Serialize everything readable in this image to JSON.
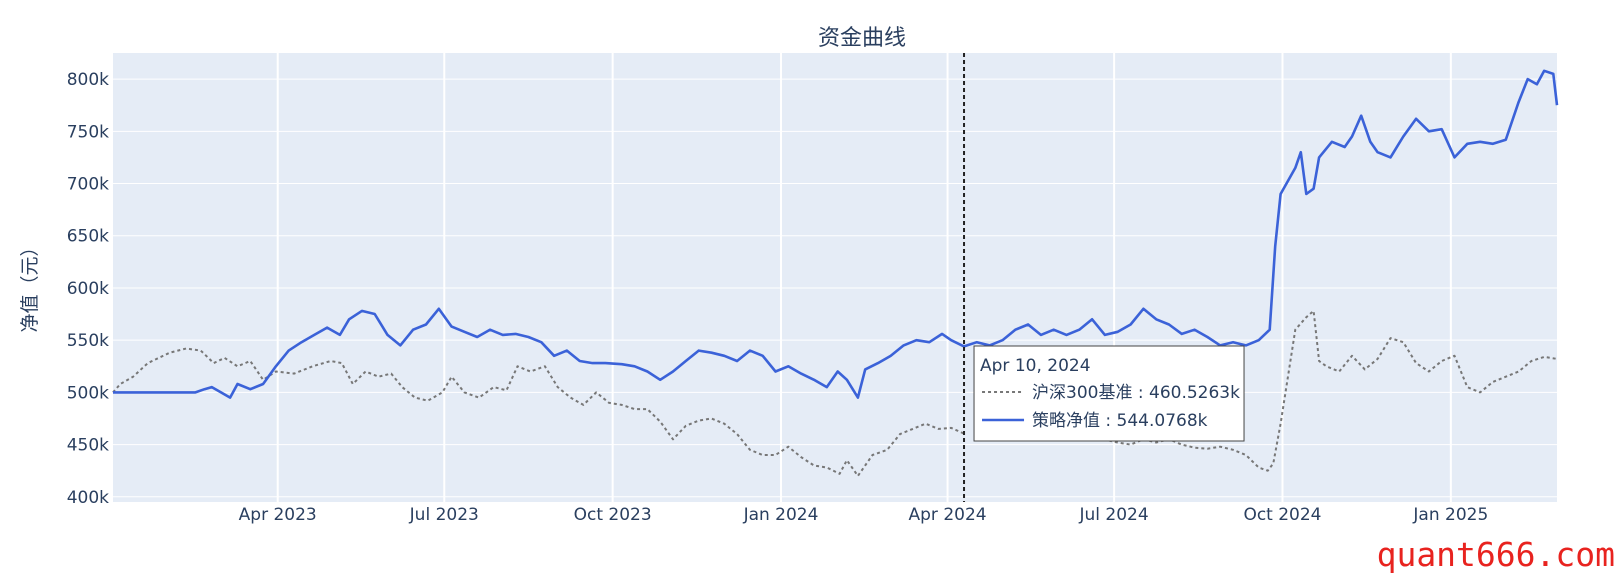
{
  "colors": {
    "plot_bg": "#e5ecf6",
    "grid": "#ffffff",
    "strategy": "#3b62d8",
    "benchmark": "#777777",
    "text": "#2a3f5f",
    "watermark": "#e8231f"
  },
  "watermark": "quant666.com",
  "chart_data": {
    "type": "line",
    "title": "资金曲线",
    "ylabel": "净值（元）",
    "xlabel": "",
    "x_range": [
      "2023-01-01",
      "2025-02-28"
    ],
    "ylim": [
      395000,
      825000
    ],
    "y_ticks": [
      400000,
      450000,
      500000,
      550000,
      600000,
      650000,
      700000,
      750000,
      800000
    ],
    "y_tick_labels": [
      "400k",
      "450k",
      "500k",
      "550k",
      "600k",
      "650k",
      "700k",
      "750k",
      "800k"
    ],
    "x_ticks": [
      "2023-04-01",
      "2023-07-01",
      "2023-10-01",
      "2024-01-01",
      "2024-04-01",
      "2024-07-01",
      "2024-10-01",
      "2025-01-01"
    ],
    "x_tick_labels": [
      "Apr 2023",
      "Jul 2023",
      "Oct 2023",
      "Jan 2024",
      "Apr 2024",
      "Jul 2024",
      "Oct 2024",
      "Jan 2025"
    ],
    "grid": true,
    "hover": {
      "x": "2024-04-10",
      "date_label": "Apr 10, 2024",
      "entries": [
        {
          "series": "沪深300基准",
          "label": "沪深300基准 : 460.5263k"
        },
        {
          "series": "策略净值",
          "label": "策略净值 : 544.0768k"
        }
      ]
    },
    "series": [
      {
        "name": "沪深300基准",
        "style": "dotted",
        "points": [
          [
            "2023-01-01",
            500000
          ],
          [
            "2023-01-05",
            508000
          ],
          [
            "2023-01-12",
            515000
          ],
          [
            "2023-01-20",
            528000
          ],
          [
            "2023-02-01",
            538000
          ],
          [
            "2023-02-10",
            542000
          ],
          [
            "2023-02-18",
            540000
          ],
          [
            "2023-02-25",
            528000
          ],
          [
            "2023-03-03",
            533000
          ],
          [
            "2023-03-10",
            525000
          ],
          [
            "2023-03-17",
            530000
          ],
          [
            "2023-03-24",
            512000
          ],
          [
            "2023-03-31",
            520000
          ],
          [
            "2023-04-10",
            518000
          ],
          [
            "2023-04-20",
            525000
          ],
          [
            "2023-04-30",
            530000
          ],
          [
            "2023-05-06",
            528000
          ],
          [
            "2023-05-12",
            508000
          ],
          [
            "2023-05-19",
            520000
          ],
          [
            "2023-05-26",
            515000
          ],
          [
            "2023-06-02",
            518000
          ],
          [
            "2023-06-08",
            505000
          ],
          [
            "2023-06-15",
            495000
          ],
          [
            "2023-06-22",
            492000
          ],
          [
            "2023-06-30",
            500000
          ],
          [
            "2023-07-05",
            515000
          ],
          [
            "2023-07-12",
            500000
          ],
          [
            "2023-07-20",
            495000
          ],
          [
            "2023-07-28",
            505000
          ],
          [
            "2023-08-04",
            502000
          ],
          [
            "2023-08-10",
            525000
          ],
          [
            "2023-08-17",
            520000
          ],
          [
            "2023-08-25",
            525000
          ],
          [
            "2023-09-01",
            505000
          ],
          [
            "2023-09-08",
            495000
          ],
          [
            "2023-09-15",
            488000
          ],
          [
            "2023-09-22",
            500000
          ],
          [
            "2023-09-29",
            490000
          ],
          [
            "2023-10-06",
            488000
          ],
          [
            "2023-10-13",
            484000
          ],
          [
            "2023-10-20",
            484000
          ],
          [
            "2023-10-27",
            472000
          ],
          [
            "2023-11-03",
            455000
          ],
          [
            "2023-11-10",
            468000
          ],
          [
            "2023-11-17",
            473000
          ],
          [
            "2023-11-24",
            475000
          ],
          [
            "2023-12-01",
            470000
          ],
          [
            "2023-12-08",
            460000
          ],
          [
            "2023-12-15",
            445000
          ],
          [
            "2023-12-22",
            440000
          ],
          [
            "2023-12-29",
            440000
          ],
          [
            "2024-01-05",
            448000
          ],
          [
            "2024-01-12",
            438000
          ],
          [
            "2024-01-19",
            430000
          ],
          [
            "2024-01-26",
            428000
          ],
          [
            "2024-02-02",
            422000
          ],
          [
            "2024-02-06",
            435000
          ],
          [
            "2024-02-12",
            420000
          ],
          [
            "2024-02-20",
            440000
          ],
          [
            "2024-02-28",
            445000
          ],
          [
            "2024-03-06",
            460000
          ],
          [
            "2024-03-13",
            465000
          ],
          [
            "2024-03-20",
            470000
          ],
          [
            "2024-03-27",
            465000
          ],
          [
            "2024-04-03",
            466000
          ],
          [
            "2024-04-10",
            460500
          ]
        ]
      },
      {
        "name": "沪深300基准",
        "style": "dotted",
        "points": [
          [
            "2024-06-25",
            455000
          ],
          [
            "2024-07-03",
            452000
          ],
          [
            "2024-07-10",
            450000
          ],
          [
            "2024-07-17",
            455000
          ],
          [
            "2024-07-24",
            452000
          ],
          [
            "2024-07-31",
            455000
          ],
          [
            "2024-08-07",
            450000
          ],
          [
            "2024-08-14",
            447000
          ],
          [
            "2024-08-21",
            446000
          ],
          [
            "2024-08-28",
            448000
          ],
          [
            "2024-09-04",
            445000
          ],
          [
            "2024-09-11",
            440000
          ],
          [
            "2024-09-18",
            428000
          ],
          [
            "2024-09-23",
            425000
          ],
          [
            "2024-09-26",
            432000
          ],
          [
            "2024-09-30",
            470000
          ],
          [
            "2024-10-08",
            560000
          ],
          [
            "2024-10-14",
            572000
          ],
          [
            "2024-10-18",
            578000
          ],
          [
            "2024-10-21",
            530000
          ],
          [
            "2024-10-25",
            525000
          ],
          [
            "2024-11-01",
            520000
          ],
          [
            "2024-11-08",
            535000
          ],
          [
            "2024-11-15",
            522000
          ],
          [
            "2024-11-22",
            532000
          ],
          [
            "2024-11-29",
            552000
          ],
          [
            "2024-12-06",
            548000
          ],
          [
            "2024-12-13",
            528000
          ],
          [
            "2024-12-20",
            520000
          ],
          [
            "2024-12-27",
            530000
          ],
          [
            "2025-01-03",
            535000
          ],
          [
            "2025-01-10",
            505000
          ],
          [
            "2025-01-17",
            500000
          ],
          [
            "2025-01-24",
            510000
          ],
          [
            "2025-01-31",
            515000
          ],
          [
            "2025-02-07",
            520000
          ],
          [
            "2025-02-14",
            530000
          ],
          [
            "2025-02-21",
            534000
          ],
          [
            "2025-02-28",
            532000
          ]
        ]
      },
      {
        "name": "策略净值",
        "style": "solid",
        "points": [
          [
            "2023-01-01",
            500000
          ],
          [
            "2023-02-15",
            500000
          ],
          [
            "2023-02-20",
            503000
          ],
          [
            "2023-02-24",
            505000
          ],
          [
            "2023-03-01",
            500000
          ],
          [
            "2023-03-06",
            495000
          ],
          [
            "2023-03-10",
            508000
          ],
          [
            "2023-03-17",
            503000
          ],
          [
            "2023-03-24",
            508000
          ],
          [
            "2023-03-31",
            525000
          ],
          [
            "2023-04-07",
            540000
          ],
          [
            "2023-04-14",
            548000
          ],
          [
            "2023-04-21",
            555000
          ],
          [
            "2023-04-28",
            562000
          ],
          [
            "2023-05-05",
            555000
          ],
          [
            "2023-05-10",
            570000
          ],
          [
            "2023-05-17",
            578000
          ],
          [
            "2023-05-24",
            575000
          ],
          [
            "2023-05-31",
            555000
          ],
          [
            "2023-06-07",
            545000
          ],
          [
            "2023-06-14",
            560000
          ],
          [
            "2023-06-21",
            565000
          ],
          [
            "2023-06-28",
            580000
          ],
          [
            "2023-07-05",
            563000
          ],
          [
            "2023-07-12",
            558000
          ],
          [
            "2023-07-19",
            553000
          ],
          [
            "2023-07-26",
            560000
          ],
          [
            "2023-08-02",
            555000
          ],
          [
            "2023-08-09",
            556000
          ],
          [
            "2023-08-16",
            553000
          ],
          [
            "2023-08-23",
            548000
          ],
          [
            "2023-08-30",
            535000
          ],
          [
            "2023-09-06",
            540000
          ],
          [
            "2023-09-13",
            530000
          ],
          [
            "2023-09-20",
            528000
          ],
          [
            "2023-09-27",
            528000
          ],
          [
            "2023-10-06",
            527000
          ],
          [
            "2023-10-13",
            525000
          ],
          [
            "2023-10-20",
            520000
          ],
          [
            "2023-10-27",
            512000
          ],
          [
            "2023-11-03",
            520000
          ],
          [
            "2023-11-10",
            530000
          ],
          [
            "2023-11-17",
            540000
          ],
          [
            "2023-11-24",
            538000
          ],
          [
            "2023-12-01",
            535000
          ],
          [
            "2023-12-08",
            530000
          ],
          [
            "2023-12-15",
            540000
          ],
          [
            "2023-12-22",
            535000
          ],
          [
            "2023-12-29",
            520000
          ],
          [
            "2024-01-05",
            525000
          ],
          [
            "2024-01-12",
            518000
          ],
          [
            "2024-01-19",
            512000
          ],
          [
            "2024-01-26",
            505000
          ],
          [
            "2024-02-01",
            520000
          ],
          [
            "2024-02-06",
            512000
          ],
          [
            "2024-02-12",
            495000
          ],
          [
            "2024-02-16",
            522000
          ],
          [
            "2024-02-23",
            528000
          ],
          [
            "2024-03-01",
            535000
          ],
          [
            "2024-03-08",
            545000
          ],
          [
            "2024-03-15",
            550000
          ],
          [
            "2024-03-22",
            548000
          ],
          [
            "2024-03-29",
            556000
          ],
          [
            "2024-04-03",
            550000
          ],
          [
            "2024-04-10",
            544000
          ],
          [
            "2024-04-17",
            548000
          ],
          [
            "2024-04-24",
            545000
          ],
          [
            "2024-05-01",
            550000
          ],
          [
            "2024-05-08",
            560000
          ],
          [
            "2024-05-15",
            565000
          ],
          [
            "2024-05-22",
            555000
          ],
          [
            "2024-05-29",
            560000
          ],
          [
            "2024-06-05",
            555000
          ],
          [
            "2024-06-12",
            560000
          ],
          [
            "2024-06-19",
            570000
          ],
          [
            "2024-06-26",
            555000
          ],
          [
            "2024-07-03",
            558000
          ],
          [
            "2024-07-10",
            565000
          ],
          [
            "2024-07-17",
            580000
          ],
          [
            "2024-07-24",
            570000
          ],
          [
            "2024-07-31",
            565000
          ],
          [
            "2024-08-07",
            556000
          ],
          [
            "2024-08-14",
            560000
          ],
          [
            "2024-08-21",
            553000
          ],
          [
            "2024-08-28",
            545000
          ],
          [
            "2024-09-04",
            548000
          ],
          [
            "2024-09-11",
            545000
          ],
          [
            "2024-09-18",
            550000
          ],
          [
            "2024-09-24",
            560000
          ],
          [
            "2024-09-27",
            640000
          ],
          [
            "2024-09-30",
            690000
          ],
          [
            "2024-10-08",
            715000
          ],
          [
            "2024-10-11",
            730000
          ],
          [
            "2024-10-14",
            690000
          ],
          [
            "2024-10-18",
            695000
          ],
          [
            "2024-10-21",
            725000
          ],
          [
            "2024-10-28",
            740000
          ],
          [
            "2024-11-04",
            735000
          ],
          [
            "2024-11-08",
            745000
          ],
          [
            "2024-11-13",
            765000
          ],
          [
            "2024-11-18",
            740000
          ],
          [
            "2024-11-22",
            730000
          ],
          [
            "2024-11-29",
            725000
          ],
          [
            "2024-12-06",
            745000
          ],
          [
            "2024-12-13",
            762000
          ],
          [
            "2024-12-20",
            750000
          ],
          [
            "2024-12-27",
            752000
          ],
          [
            "2025-01-03",
            725000
          ],
          [
            "2025-01-10",
            738000
          ],
          [
            "2025-01-17",
            740000
          ],
          [
            "2025-01-24",
            738000
          ],
          [
            "2025-01-31",
            742000
          ],
          [
            "2025-02-07",
            778000
          ],
          [
            "2025-02-12",
            800000
          ],
          [
            "2025-02-17",
            795000
          ],
          [
            "2025-02-21",
            808000
          ],
          [
            "2025-02-26",
            805000
          ],
          [
            "2025-02-28",
            775000
          ]
        ]
      }
    ]
  }
}
